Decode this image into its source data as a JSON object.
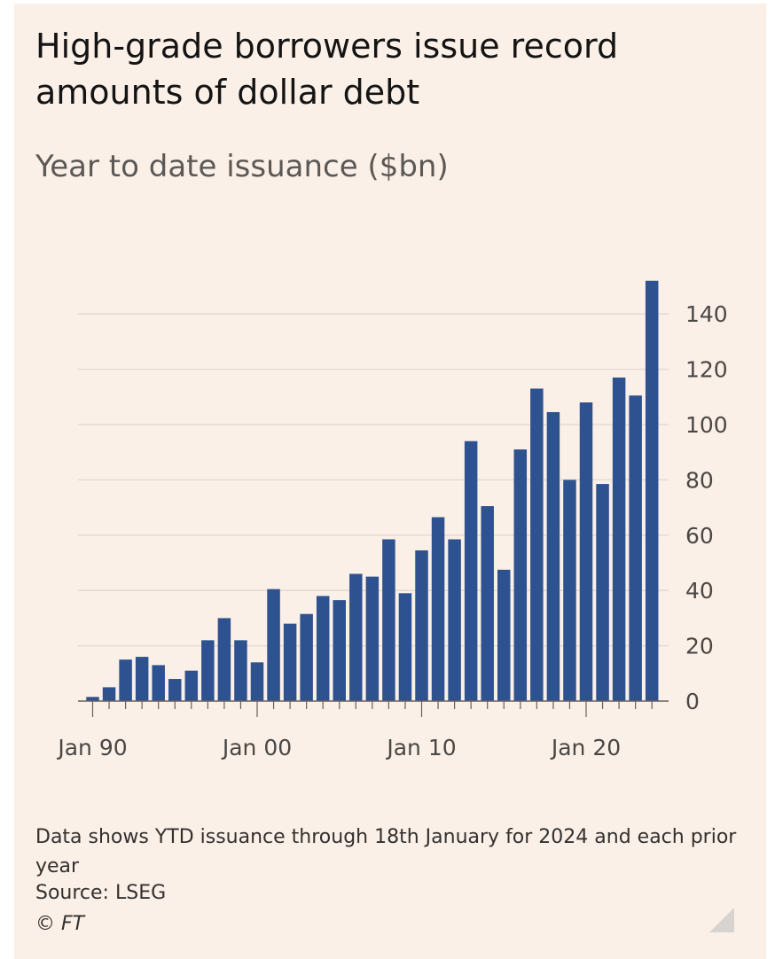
{
  "title": "High-grade borrowers issue record amounts of dollar debt",
  "subtitle": "Year to date issuance ($bn)",
  "note": "Data shows YTD issuance through 18th January for 2024 and each prior year",
  "source": "Source: LSEG",
  "credit": "© FT",
  "chart_data": {
    "type": "bar",
    "title": "High-grade borrowers issue record amounts of dollar debt",
    "ylabel": "Year to date issuance ($bn)",
    "xlabel": "",
    "ylim": [
      0,
      150
    ],
    "yticks": [
      0,
      20,
      40,
      60,
      80,
      100,
      120,
      140
    ],
    "ytick_labels": [
      "0",
      "20",
      "40",
      "60",
      "80",
      "100",
      "120",
      "140"
    ],
    "xtick_labels": [
      {
        "year": 1990,
        "label": "Jan 90"
      },
      {
        "year": 2000,
        "label": "Jan 00"
      },
      {
        "year": 2010,
        "label": "Jan 10"
      },
      {
        "year": 2020,
        "label": "Jan 20"
      }
    ],
    "categories": [
      1990,
      1991,
      1992,
      1993,
      1994,
      1995,
      1996,
      1997,
      1998,
      1999,
      2000,
      2001,
      2002,
      2003,
      2004,
      2005,
      2006,
      2007,
      2008,
      2009,
      2010,
      2011,
      2012,
      2013,
      2014,
      2015,
      2016,
      2017,
      2018,
      2019,
      2020,
      2021,
      2022,
      2023,
      2024
    ],
    "values": [
      1.5,
      5,
      15,
      16,
      13,
      8,
      11,
      22,
      30,
      22,
      14,
      40.5,
      28,
      31.5,
      38,
      36.5,
      46,
      45,
      58.5,
      39,
      54.5,
      66.5,
      58.5,
      94,
      70.5,
      47.5,
      91,
      113,
      104.5,
      80,
      108,
      78.5,
      117,
      110.5,
      152
    ],
    "color": "#2e5290",
    "grid": true,
    "y_axis_position": "right"
  }
}
